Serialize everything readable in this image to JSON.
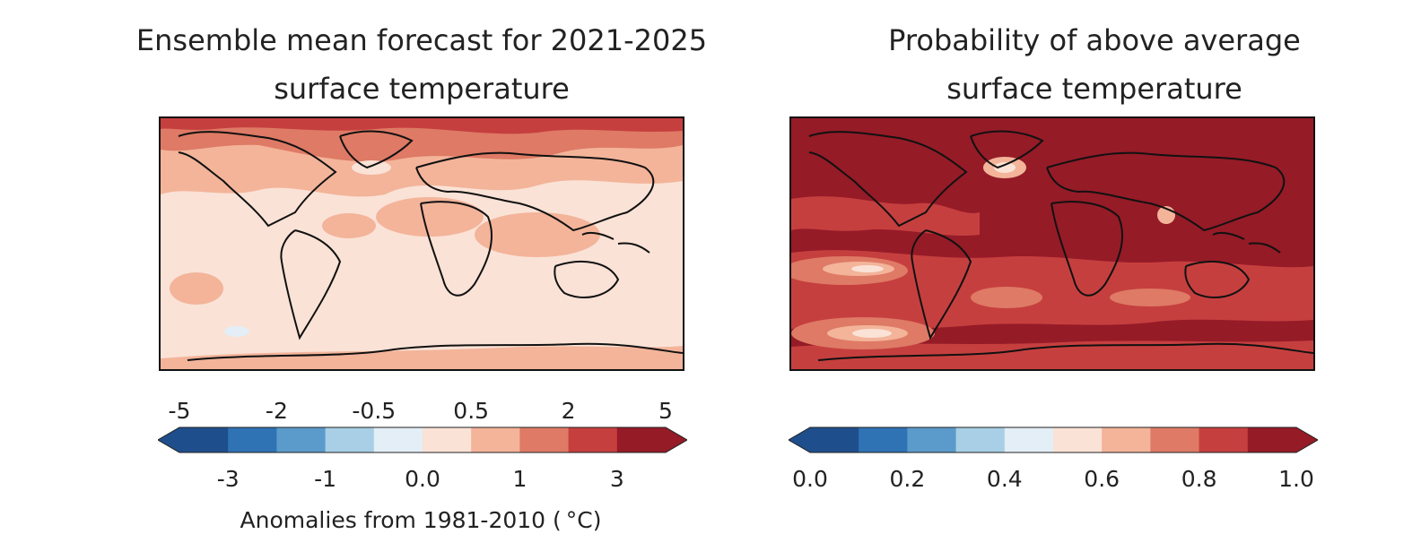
{
  "panels": {
    "left": {
      "title_line1": "Ensemble mean forecast for 2021-2025",
      "title_line2": "surface temperature",
      "colorbar": {
        "colors": [
          "#1f4e8c",
          "#2f73b4",
          "#5b9bcb",
          "#a8cfe5",
          "#e3eef6",
          "#fae2d6",
          "#f3b49a",
          "#de7a65",
          "#c63f3f",
          "#951b27"
        ],
        "top_ticks": [
          "-5",
          "-2",
          "-0.5",
          "0.5",
          "2",
          "5"
        ],
        "bottom_ticks": [
          "-3",
          "-1",
          "0.0",
          "1",
          "3"
        ],
        "label": "Anomalies from 1981-2010 ( °C)"
      }
    },
    "right": {
      "title_line1": "Probability of above average",
      "title_line2": "surface temperature",
      "colorbar": {
        "colors": [
          "#1f4e8c",
          "#2f73b4",
          "#5b9bcb",
          "#a8cfe5",
          "#e3eef6",
          "#fae2d6",
          "#f3b49a",
          "#de7a65",
          "#c63f3f",
          "#951b27"
        ],
        "bottom_ticks": [
          "0.0",
          "0.2",
          "0.4",
          "0.6",
          "0.8",
          "1.0"
        ]
      }
    }
  }
}
